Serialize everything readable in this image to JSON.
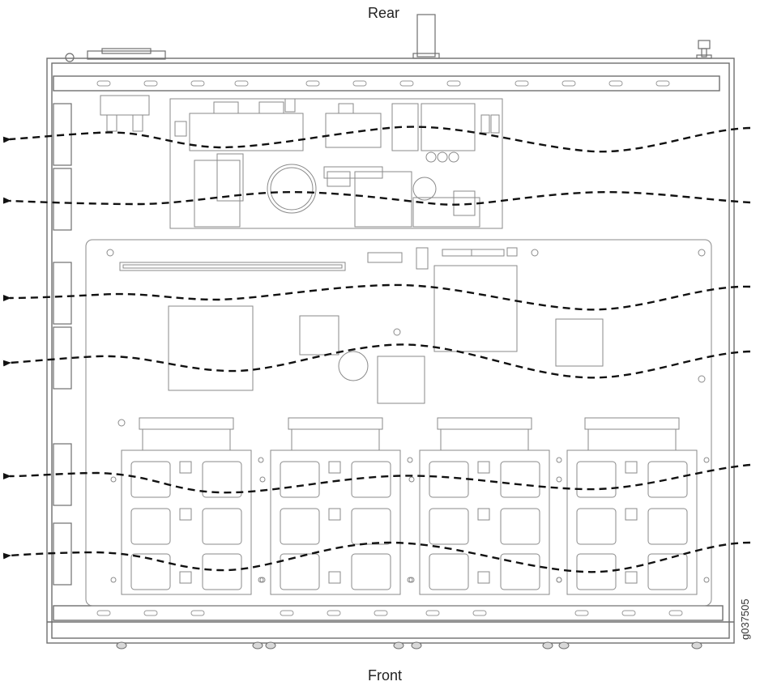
{
  "labels": {
    "rear": "Rear",
    "front": "Front",
    "figure_id": "g037505"
  },
  "colors": {
    "line": "#8a8a8a",
    "chassis": "#6e6e6e",
    "airflow": "#111111",
    "background": "#ffffff"
  },
  "airflow": {
    "direction": "right-to-left",
    "arrow_count": 6
  },
  "components": {
    "fan_modules": 6,
    "drive_bays": 4
  }
}
